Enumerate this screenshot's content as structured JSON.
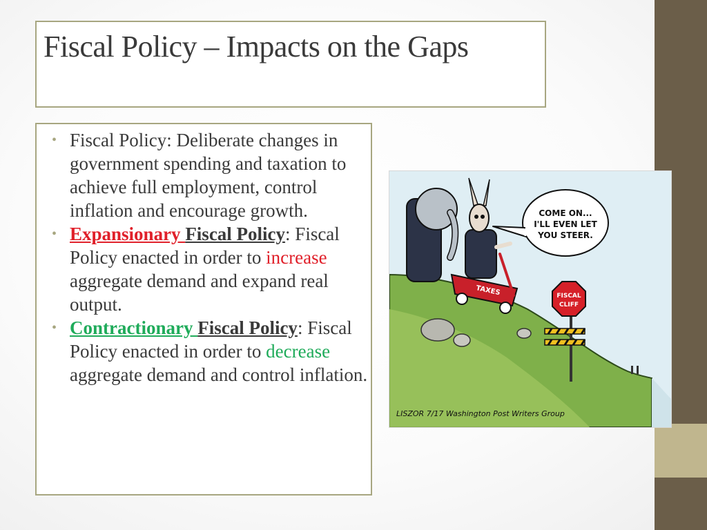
{
  "slide": {
    "title": "Fiscal Policy – Impacts on the Gaps",
    "colors": {
      "accent_bar": "#6b5e49",
      "accent_bar_light": "#c0b68e",
      "border": "#a7a680",
      "expansionary": "#e0202a",
      "contractionary": "#1fab5a",
      "text": "#3a3a3a"
    },
    "bullets": [
      {
        "text": "Fiscal Policy: Deliberate changes in government spending and taxation to achieve full employment, control inflation and encourage growth."
      },
      {
        "term": "Expansionary ",
        "term_suffix": "Fiscal Policy",
        "colon": ":",
        "text_before": " Fiscal Policy enacted in order to ",
        "highlight": "increase",
        "text_after": " aggregate demand and expand real output."
      },
      {
        "term": "Contractionary ",
        "term_suffix": "Fiscal Policy",
        "colon": ":",
        "text_before": " Fiscal Policy enacted in order to ",
        "highlight": "decrease",
        "text_after": " aggregate demand and control inflation."
      }
    ]
  },
  "cartoon": {
    "speech_line1": "COME ON...",
    "speech_line2": "I'LL EVEN LET",
    "speech_line3": "YOU STEER.",
    "wagon_label": "TAXES",
    "sign_line1": "FISCAL",
    "sign_line2": "CLIFF",
    "signature": "LISZOR 7/17 Washington Post Writers Group"
  }
}
